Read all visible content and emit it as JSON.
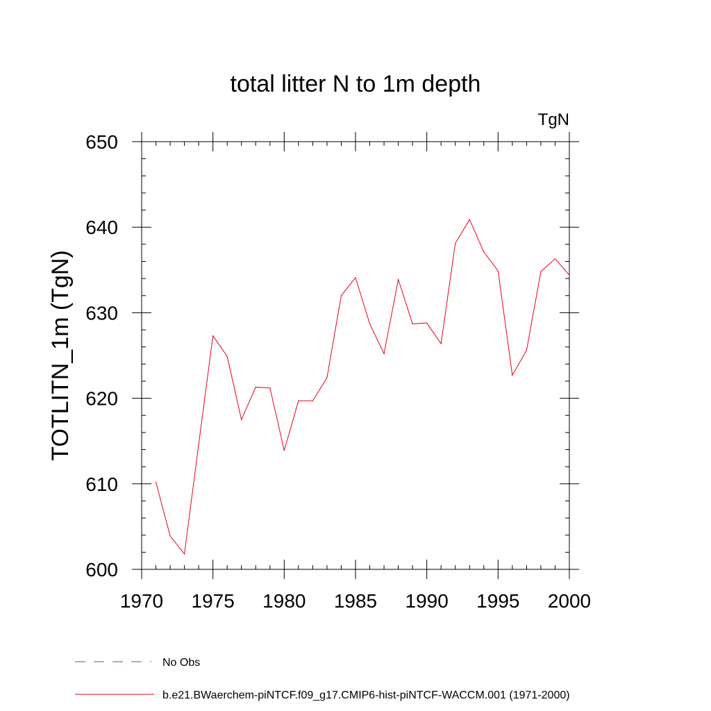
{
  "chart_data": {
    "type": "line",
    "title": "total litter N to 1m depth",
    "units": "TgN",
    "ylabel": "TOTLITN_1m  (TgN)",
    "xlabel": "",
    "xlim": [
      1970,
      2000
    ],
    "ylim": [
      600,
      650
    ],
    "x_ticks": [
      "1970",
      "1975",
      "1980",
      "1985",
      "1990",
      "1995",
      "2000"
    ],
    "y_ticks": [
      "600",
      "610",
      "620",
      "630",
      "640",
      "650"
    ],
    "x_tick_values": [
      1970,
      1975,
      1980,
      1985,
      1990,
      1995,
      2000
    ],
    "y_tick_values": [
      600,
      610,
      620,
      630,
      640,
      650
    ],
    "grid": false,
    "legend_placement": "bottom",
    "legend": [
      {
        "label": "No Obs",
        "style": "dashed",
        "color": "#5a4fb4"
      },
      {
        "label": "b.e21.BWaerchem-piNTCF.f09_g17.CMIP6-hist-piNTCF-WACCM.001 (1971-2000)",
        "style": "solid",
        "color": "#e8001a"
      }
    ],
    "series": [
      {
        "name": "b.e21.BWaerchem-piNTCF.f09_g17.CMIP6-hist-piNTCF-WACCM.001 (1971-2000)",
        "color": "#e8001a",
        "x": [
          1971,
          1972,
          1973,
          1974,
          1975,
          1976,
          1977,
          1978,
          1979,
          1980,
          1981,
          1982,
          1983,
          1984,
          1985,
          1986,
          1987,
          1988,
          1989,
          1990,
          1991,
          1992,
          1993,
          1994,
          1995,
          1996,
          1997,
          1998,
          1999,
          2000
        ],
        "y": [
          610.2,
          603.9,
          601.8,
          614.6,
          627.3,
          624.9,
          617.5,
          621.3,
          621.2,
          613.9,
          619.7,
          619.7,
          622.4,
          632.0,
          634.1,
          628.7,
          625.2,
          633.9,
          628.7,
          628.8,
          626.4,
          638.1,
          640.9,
          637.1,
          634.9,
          622.7,
          625.6,
          634.8,
          636.3,
          634.4
        ]
      }
    ]
  }
}
